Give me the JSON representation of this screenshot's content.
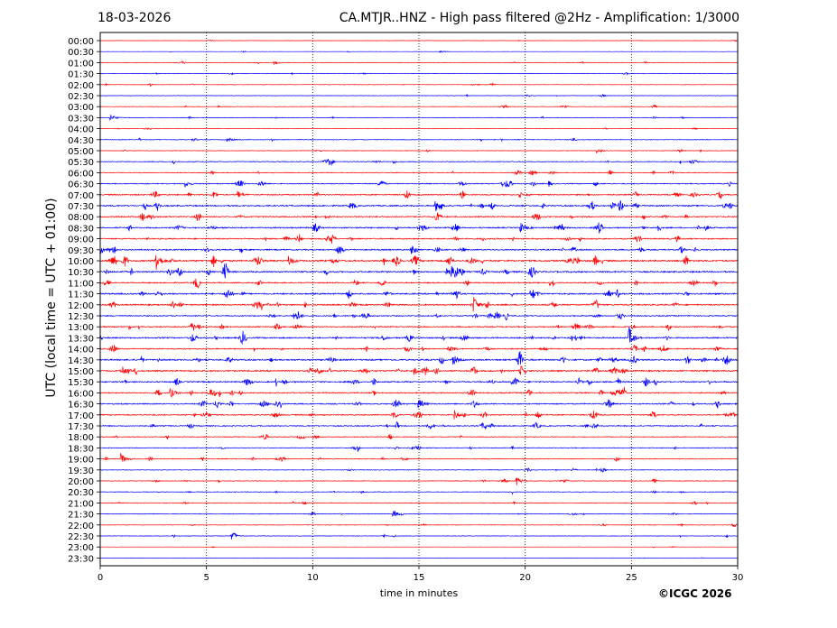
{
  "header": {
    "date": "18-03-2026",
    "title": "CA.MTJR..HNZ - High pass filtered @2Hz - Amplification: 1/3000"
  },
  "footer": {
    "copyright": "©ICGC 2026"
  },
  "chart_data": {
    "type": "line",
    "title": "CA.MTJR..HNZ - High pass filtered @2Hz - Amplification: 1/3000",
    "xlabel": "time in minutes",
    "ylabel": "UTC (local time = UTC + 01:00)",
    "xlim": [
      0,
      30
    ],
    "xticks": [
      "0",
      "5",
      "10",
      "15",
      "20",
      "25",
      "30"
    ],
    "grid": "vertical dotted lines at x = 5, 10, 15, 20, 25",
    "colors": {
      "even_rows": "#ff0000",
      "odd_rows": "#0000ff"
    },
    "row_labels": [
      "00:00",
      "00:30",
      "01:00",
      "01:30",
      "02:00",
      "02:30",
      "03:00",
      "03:30",
      "04:00",
      "04:30",
      "05:00",
      "05:30",
      "06:00",
      "06:30",
      "07:00",
      "07:30",
      "08:00",
      "08:30",
      "09:00",
      "09:30",
      "10:00",
      "10:30",
      "11:00",
      "11:30",
      "12:00",
      "12:30",
      "13:00",
      "13:30",
      "14:00",
      "14:30",
      "15:00",
      "15:30",
      "16:00",
      "16:30",
      "17:00",
      "17:30",
      "18:00",
      "18:30",
      "19:00",
      "19:30",
      "20:00",
      "20:30",
      "21:00",
      "21:30",
      "22:00",
      "22:30",
      "23:00",
      "23:30"
    ],
    "noise_level": [
      0.3,
      0.3,
      0.5,
      0.5,
      0.6,
      0.5,
      0.6,
      0.7,
      0.4,
      0.8,
      0.6,
      1.0,
      1.0,
      1.3,
      1.6,
      1.8,
      1.6,
      1.7,
      1.7,
      1.7,
      2.2,
      2.0,
      1.5,
      2.0,
      1.8,
      1.5,
      1.6,
      1.8,
      1.5,
      2.0,
      2.0,
      1.8,
      1.6,
      1.6,
      1.5,
      1.4,
      1.0,
      1.0,
      1.0,
      0.8,
      0.8,
      0.8,
      0.8,
      0.8,
      0.7,
      0.7,
      0.3,
      0.2
    ],
    "events": [
      {
        "row": "00:30",
        "minute": 16.0,
        "amp": 1.0
      },
      {
        "row": "01:00",
        "minute": 8.2,
        "amp": 2.0
      },
      {
        "row": "03:30",
        "minute": 0.5,
        "amp": 4.0
      },
      {
        "row": "04:30",
        "minute": 6.0,
        "amp": 3.0
      },
      {
        "row": "05:00",
        "minute": 23.4,
        "amp": 3.0
      },
      {
        "row": "06:30",
        "minute": 4.0,
        "amp": 4.0
      },
      {
        "row": "07:00",
        "minute": 6.5,
        "amp": 4.0
      },
      {
        "row": "07:30",
        "minute": 15.8,
        "amp": 6.0
      },
      {
        "row": "08:30",
        "minute": 19.8,
        "amp": 5.0
      },
      {
        "row": "10:00",
        "minute": 2.6,
        "amp": 16.0
      },
      {
        "row": "10:00",
        "minute": 8.9,
        "amp": 6.0
      },
      {
        "row": "12:00",
        "minute": 17.6,
        "amp": 7.0
      },
      {
        "row": "13:30",
        "minute": 24.9,
        "amp": 12.0
      },
      {
        "row": "14:30",
        "minute": 16.6,
        "amp": 6.0
      },
      {
        "row": "15:00",
        "minute": 14.8,
        "amp": 5.0
      },
      {
        "row": "16:00",
        "minute": 3.3,
        "amp": 6.0
      },
      {
        "row": "16:30",
        "minute": 15.0,
        "amp": 6.0
      },
      {
        "row": "17:00",
        "minute": 16.7,
        "amp": 5.0
      },
      {
        "row": "19:00",
        "minute": 1.0,
        "amp": 6.0
      },
      {
        "row": "20:00",
        "minute": 19.6,
        "amp": 5.0
      },
      {
        "row": "21:30",
        "minute": 13.8,
        "amp": 4.0
      },
      {
        "row": "22:30",
        "minute": 6.2,
        "amp": 4.0
      }
    ]
  }
}
